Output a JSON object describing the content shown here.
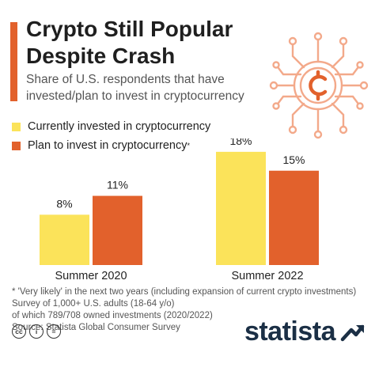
{
  "header": {
    "title_line1": "Crypto Still Popular",
    "title_line2": "Despite Crash",
    "subtitle_line1": "Share of U.S. respondents that have",
    "subtitle_line2": "invested/plan to invest in cryptocurrency"
  },
  "legend": {
    "item1": "Currently invested in cryptocurrency",
    "item2": "Plan to invest in cryptocurrency",
    "item2_marker": "*"
  },
  "colors": {
    "series1": "#fbe35a",
    "series2": "#e2612c",
    "accent": "#e2612c",
    "brand": "#1b2f45"
  },
  "chart_data": {
    "type": "bar",
    "categories": [
      "Summer 2020",
      "Summer 2022"
    ],
    "series": [
      {
        "name": "Currently invested in cryptocurrency",
        "values": [
          8,
          18
        ],
        "labels": [
          "8%",
          "18%"
        ]
      },
      {
        "name": "Plan to invest in cryptocurrency*",
        "values": [
          11,
          15
        ],
        "labels": [
          "11%",
          "15%"
        ]
      }
    ],
    "ylim": [
      0,
      20
    ],
    "grid": false,
    "legend_position": "top-left"
  },
  "footnote": {
    "line1": "* 'Very likely' in the next two years (including expansion of current crypto investments)",
    "line2": "Survey of 1,000+ U.S. adults (18-64 y/o)",
    "line3": "of which 789/708 owned investments (2020/2022)",
    "line4": "Source: Statista Global Consumer Survey"
  },
  "footer": {
    "cc_icon_label": "cc",
    "by_icon_label": "i",
    "nd_icon_label": "=",
    "brand": "statista"
  },
  "icons": [
    "cryptocurrency-coin-icon",
    "creative-commons-icon",
    "attribution-icon",
    "no-derivatives-icon",
    "statista-logo-icon"
  ]
}
